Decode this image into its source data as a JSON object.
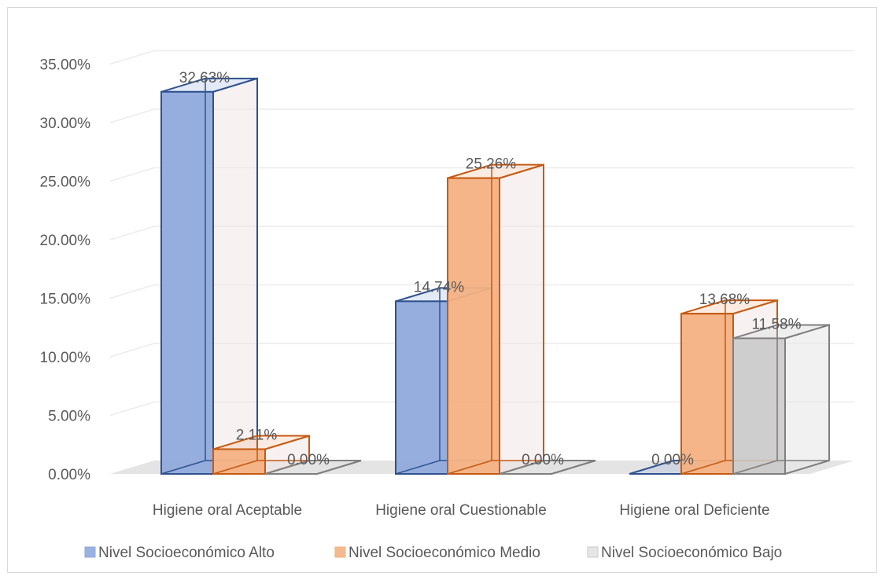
{
  "chart_data": {
    "type": "bar",
    "title": "",
    "xlabel": "",
    "ylabel": "",
    "categories": [
      "Higiene oral Aceptable",
      "Higiene oral Cuestionable",
      "Higiene oral Deficiente"
    ],
    "series": [
      {
        "name": "Nivel Socioeconómico Alto",
        "values": [
          32.63,
          14.74,
          0.0
        ],
        "color": "#8faadc",
        "stroke": "#2f528f"
      },
      {
        "name": "Nivel Socioeconómico Medio",
        "values": [
          2.11,
          25.26,
          13.68
        ],
        "color": "#f4b183",
        "stroke": "#c55a11"
      },
      {
        "name": "Nivel Socioeconómico Bajo",
        "values": [
          0.0,
          0.0,
          11.58
        ],
        "color": "#d0d0d0",
        "stroke": "#7f7f7f"
      }
    ],
    "data_labels": [
      [
        "32.63%",
        "14.74%",
        "0.00%"
      ],
      [
        "2.11%",
        "25.26%",
        "13.68%"
      ],
      [
        "0.00%",
        "0.00%",
        "11.58%"
      ]
    ],
    "y_ticks": [
      "0.00%",
      "5.00%",
      "10.00%",
      "15.00%",
      "20.00%",
      "25.00%",
      "30.00%",
      "35.00%"
    ],
    "ylim": [
      0,
      35
    ],
    "grid": true,
    "legend_position": "bottom",
    "style": "3d-clustered-column",
    "floor_color": "#e4e4e4"
  }
}
